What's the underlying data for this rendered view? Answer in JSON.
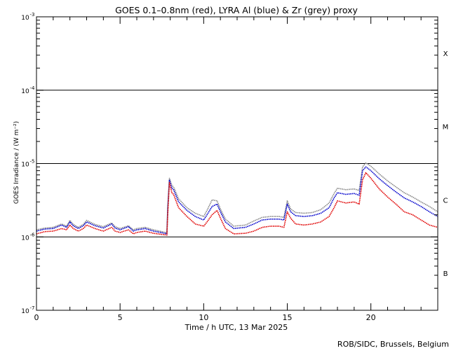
{
  "chart_data": {
    "type": "line",
    "title": "GOES 0.1–0.8nm (red), LYRA Al (blue) & Zr (grey) proxy",
    "xlabel": "Time / h UTC, 13 Mar 2025",
    "ylabel": "GOES Irradiance / (W m⁻²)",
    "xlim": [
      0,
      24
    ],
    "ylim": [
      1e-07,
      0.001
    ],
    "yscale": "log",
    "x_ticks": [
      0,
      5,
      10,
      15,
      20
    ],
    "y_ticks": [
      {
        "exp": "-7",
        "value": 1e-07
      },
      {
        "exp": "-6",
        "value": 1e-06
      },
      {
        "exp": "-5",
        "value": 1e-05
      },
      {
        "exp": "-4",
        "value": 0.0001
      },
      {
        "exp": "-3",
        "value": 0.001
      }
    ],
    "y_tick_base": "10",
    "flare_classes": [
      {
        "label": "X",
        "value": 0.00032
      },
      {
        "label": "M",
        "value": 3.2e-05
      },
      {
        "label": "C",
        "value": 3.2e-06
      },
      {
        "label": "B",
        "value": 3.2e-07
      }
    ],
    "class_lines": [
      1e-06,
      1e-05,
      0.0001
    ],
    "colors": {
      "goes": "#e00000",
      "al": "#0000cc",
      "zr": "#888888"
    },
    "series": [
      {
        "key": "goes",
        "x": [
          0,
          0.5,
          1,
          1.5,
          1.8,
          2,
          2.2,
          2.5,
          2.8,
          3,
          3.5,
          4,
          4.5,
          4.7,
          5,
          5.5,
          5.8,
          6,
          6.5,
          7,
          7.5,
          7.8,
          7.85,
          7.95,
          8.1,
          8.2,
          8.5,
          9,
          9.5,
          10,
          10.2,
          10.5,
          10.8,
          11,
          11.3,
          11.8,
          12.5,
          13,
          13.5,
          14,
          14.5,
          14.8,
          15,
          15.2,
          15.5,
          16,
          16.5,
          17,
          17.5,
          17.8,
          18,
          18.5,
          19,
          19.3,
          19.5,
          19.7,
          20,
          20.5,
          21,
          21.5,
          22,
          22.5,
          23,
          23.5,
          24
        ],
        "y": [
          1.1e-06,
          1.18e-06,
          1.2e-06,
          1.3e-06,
          1.25e-06,
          1.45e-06,
          1.3e-06,
          1.2e-06,
          1.3e-06,
          1.45e-06,
          1.3e-06,
          1.2e-06,
          1.35e-06,
          1.2e-06,
          1.15e-06,
          1.25e-06,
          1.1e-06,
          1.15e-06,
          1.2e-06,
          1.12e-06,
          1.08e-06,
          1.06e-06,
          2e-06,
          5.5e-06,
          4e-06,
          3.8e-06,
          2.5e-06,
          1.9e-06,
          1.5e-06,
          1.4e-06,
          1.6e-06,
          2e-06,
          2.3e-06,
          1.8e-06,
          1.3e-06,
          1.1e-06,
          1.12e-06,
          1.2e-06,
          1.35e-06,
          1.4e-06,
          1.4e-06,
          1.35e-06,
          2.2e-06,
          1.8e-06,
          1.5e-06,
          1.45e-06,
          1.5e-06,
          1.6e-06,
          1.9e-06,
          2.5e-06,
          3.1e-06,
          2.9e-06,
          3e-06,
          2.8e-06,
          6e-06,
          7.5e-06,
          6.3e-06,
          4.5e-06,
          3.5e-06,
          2.8e-06,
          2.2e-06,
          2e-06,
          1.7e-06,
          1.45e-06,
          1.35e-06
        ]
      },
      {
        "key": "al",
        "x": [
          0,
          0.5,
          1,
          1.5,
          1.8,
          2,
          2.2,
          2.5,
          2.8,
          3,
          3.5,
          4,
          4.5,
          4.7,
          5,
          5.5,
          5.8,
          6,
          6.5,
          7,
          7.5,
          7.8,
          7.85,
          7.95,
          8.1,
          8.2,
          8.5,
          9,
          9.5,
          10,
          10.2,
          10.5,
          10.8,
          11,
          11.3,
          11.8,
          12.5,
          13,
          13.5,
          14,
          14.5,
          14.8,
          15,
          15.2,
          15.5,
          16,
          16.5,
          17,
          17.5,
          17.8,
          18,
          18.5,
          19,
          19.3,
          19.5,
          19.7,
          20,
          20.5,
          21,
          21.5,
          22,
          22.5,
          23,
          23.5,
          24
        ],
        "y": [
          1.2e-06,
          1.28e-06,
          1.3e-06,
          1.45e-06,
          1.35e-06,
          1.6e-06,
          1.42e-06,
          1.3e-06,
          1.42e-06,
          1.6e-06,
          1.42e-06,
          1.32e-06,
          1.5e-06,
          1.32e-06,
          1.25e-06,
          1.38e-06,
          1.2e-06,
          1.25e-06,
          1.3e-06,
          1.2e-06,
          1.14e-06,
          1.1e-06,
          2.4e-06,
          6e-06,
          4.6e-06,
          4.4e-06,
          3e-06,
          2.3e-06,
          1.9e-06,
          1.7e-06,
          2e-06,
          2.6e-06,
          2.8e-06,
          2.2e-06,
          1.6e-06,
          1.3e-06,
          1.35e-06,
          1.5e-06,
          1.7e-06,
          1.75e-06,
          1.75e-06,
          1.7e-06,
          2.8e-06,
          2.2e-06,
          1.95e-06,
          1.9e-06,
          1.95e-06,
          2.1e-06,
          2.5e-06,
          3.4e-06,
          4e-06,
          3.8e-06,
          3.9e-06,
          3.7e-06,
          8e-06,
          9e-06,
          8e-06,
          6.2e-06,
          5e-06,
          4.1e-06,
          3.4e-06,
          3e-06,
          2.6e-06,
          2.2e-06,
          1.9e-06
        ]
      },
      {
        "key": "zr",
        "x": [
          0,
          0.5,
          1,
          1.5,
          1.8,
          2,
          2.2,
          2.5,
          2.8,
          3,
          3.5,
          4,
          4.5,
          4.7,
          5,
          5.5,
          5.8,
          6,
          6.5,
          7,
          7.5,
          7.8,
          7.85,
          7.95,
          8.1,
          8.2,
          8.5,
          9,
          9.5,
          10,
          10.2,
          10.5,
          10.8,
          11,
          11.3,
          11.8,
          12.5,
          13,
          13.5,
          14,
          14.5,
          14.8,
          15,
          15.2,
          15.5,
          16,
          16.5,
          17,
          17.5,
          17.8,
          18,
          18.5,
          19,
          19.3,
          19.5,
          19.7,
          20,
          20.5,
          21,
          21.5,
          22,
          22.5,
          23,
          23.5,
          24
        ],
        "y": [
          1.25e-06,
          1.32e-06,
          1.35e-06,
          1.5e-06,
          1.4e-06,
          1.68e-06,
          1.48e-06,
          1.35e-06,
          1.48e-06,
          1.68e-06,
          1.48e-06,
          1.38e-06,
          1.55e-06,
          1.38e-06,
          1.3e-06,
          1.42e-06,
          1.25e-06,
          1.3e-06,
          1.35e-06,
          1.25e-06,
          1.18e-06,
          1.14e-06,
          2.6e-06,
          6.3e-06,
          5e-06,
          4.8e-06,
          3.3e-06,
          2.5e-06,
          2.1e-06,
          1.9e-06,
          2.3e-06,
          3.2e-06,
          3.1e-06,
          2.4e-06,
          1.75e-06,
          1.4e-06,
          1.45e-06,
          1.65e-06,
          1.85e-06,
          1.9e-06,
          1.9e-06,
          1.85e-06,
          3.1e-06,
          2.4e-06,
          2.15e-06,
          2.1e-06,
          2.15e-06,
          2.35e-06,
          2.9e-06,
          3.9e-06,
          4.6e-06,
          4.4e-06,
          4.5e-06,
          4.3e-06,
          9e-06,
          1.02e-05,
          9.2e-06,
          7.2e-06,
          5.8e-06,
          4.8e-06,
          4e-06,
          3.5e-06,
          3e-06,
          2.6e-06,
          2.2e-06
        ]
      }
    ]
  },
  "footer": {
    "credit": "ROB/SIDC, Brussels, Belgium"
  }
}
